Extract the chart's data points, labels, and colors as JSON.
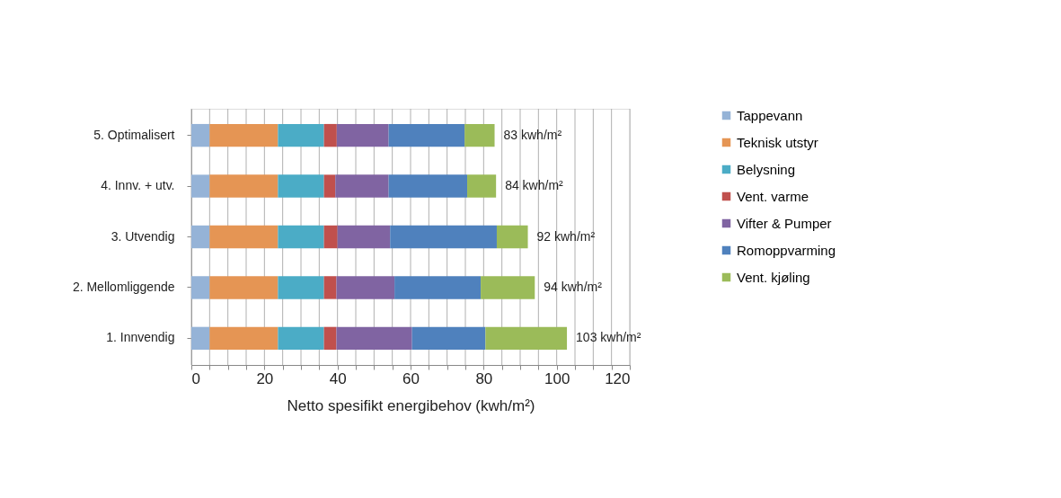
{
  "chart_data": {
    "type": "bar",
    "orientation": "horizontal",
    "stacked": true,
    "xlabel": "Netto spesifikt energibehov (kwh/m²)",
    "categories": [
      "5. Optimalisert",
      "4. Innv. + utv.",
      "3. Utvendig",
      "2. Mellomliggende",
      "1. Innvendig"
    ],
    "series": [
      {
        "name": "Tappevann",
        "color": "#95b3d7",
        "values": [
          5,
          5,
          5,
          5,
          5
        ]
      },
      {
        "name": "Teknisk utstyr",
        "color": "#e59554",
        "values": [
          18.7,
          18.7,
          18.7,
          18.7,
          18.7
        ]
      },
      {
        "name": "Belysning",
        "color": "#4bacc6",
        "values": [
          12.6,
          12.6,
          12.6,
          12.6,
          12.6
        ]
      },
      {
        "name": "Vent. varme",
        "color": "#c0504d",
        "values": [
          3.5,
          3.1,
          3.7,
          3.4,
          3.4
        ]
      },
      {
        "name": "Vifter & Pumper",
        "color": "#8064a2",
        "values": [
          14.2,
          14.6,
          14.4,
          15.9,
          20.7
        ]
      },
      {
        "name": "Romoppvarming",
        "color": "#4f81bd",
        "values": [
          20.8,
          21.5,
          29.2,
          23.6,
          20.1
        ]
      },
      {
        "name": "Vent. kjøling",
        "color": "#9bbb59",
        "values": [
          8.2,
          7.9,
          8.5,
          14.8,
          22.3
        ]
      }
    ],
    "totals": [
      "83 kwh/m²",
      "84 kwh/m²",
      "92 kwh/m²",
      "94 kwh/m²",
      "103 kwh/m²"
    ],
    "xlim": [
      0,
      120
    ],
    "xticks": [
      0,
      {
        "value": 5,
        "label": null
      },
      {
        "value": 10,
        "label": null
      },
      {
        "value": 15,
        "label": null
      },
      20,
      {
        "value": 25,
        "label": null
      },
      {
        "value": 30,
        "label": null
      },
      {
        "value": 35,
        "label": null
      },
      40,
      {
        "value": 45,
        "label": null
      },
      {
        "value": 50,
        "label": null
      },
      {
        "value": 55,
        "label": null
      },
      60,
      {
        "value": 65,
        "label": null
      },
      {
        "value": 70,
        "label": null
      },
      {
        "value": 75,
        "label": null
      },
      80,
      {
        "value": 85,
        "label": null
      },
      {
        "value": 90,
        "label": null
      },
      {
        "value": 95,
        "label": null
      },
      100,
      {
        "value": 105,
        "label": null
      },
      {
        "value": 110,
        "label": null
      },
      {
        "value": 115,
        "label": null
      },
      120
    ],
    "grid": "x",
    "legend": "right"
  }
}
